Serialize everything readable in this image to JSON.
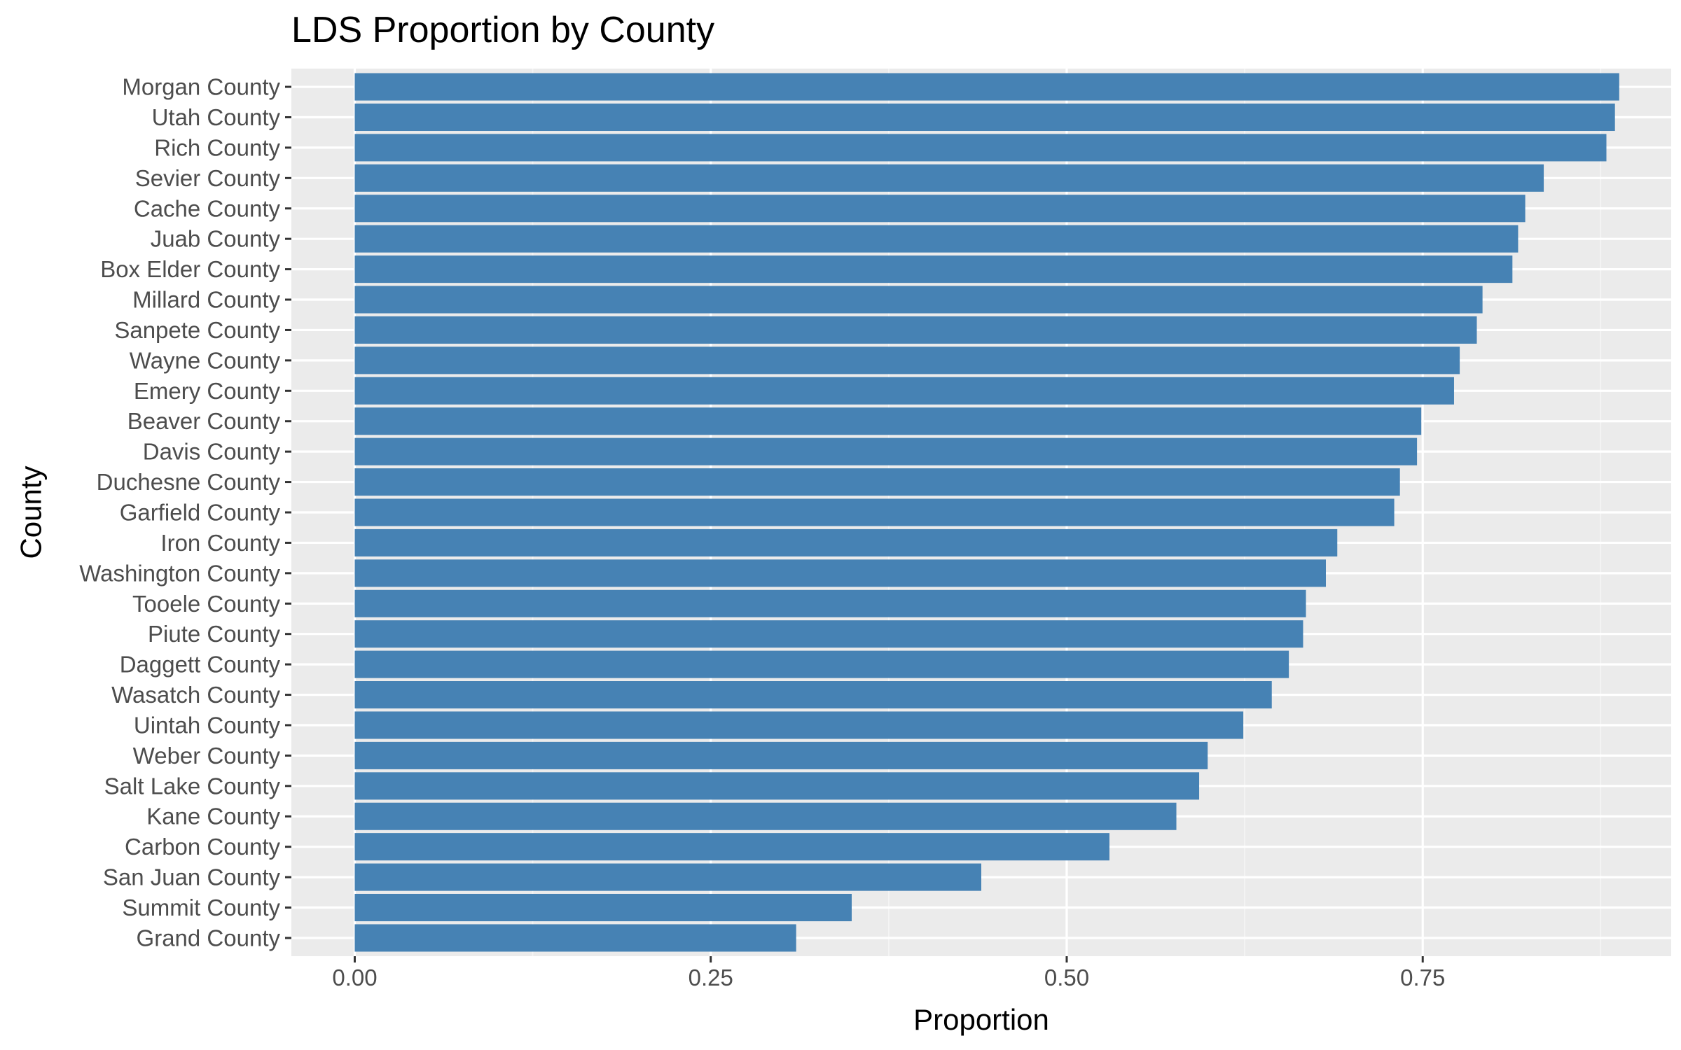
{
  "chart_data": {
    "type": "bar",
    "orientation": "horizontal",
    "title": "LDS Proportion by County",
    "xlabel": "Proportion",
    "ylabel": "County",
    "xlim": [
      -0.0445,
      0.9245
    ],
    "x_ticks": [
      0,
      0.25,
      0.5,
      0.75
    ],
    "x_tick_labels": [
      "0.00",
      "0.25",
      "0.50",
      "0.75"
    ],
    "grid": true,
    "legend": "none",
    "categories": [
      "Morgan County",
      "Utah County",
      "Rich County",
      "Sevier County",
      "Cache County",
      "Juab County",
      "Box Elder County",
      "Millard County",
      "Sanpete County",
      "Wayne County",
      "Emery County",
      "Beaver County",
      "Davis County",
      "Duchesne County",
      "Garfield County",
      "Iron County",
      "Washington County",
      "Tooele County",
      "Piute County",
      "Daggett County",
      "Wasatch County",
      "Uintah County",
      "Weber County",
      "Salt Lake County",
      "Kane County",
      "Carbon County",
      "San Juan County",
      "Summit County",
      "Grand County"
    ],
    "values": [
      0.888,
      0.885,
      0.879,
      0.835,
      0.822,
      0.817,
      0.813,
      0.792,
      0.788,
      0.776,
      0.772,
      0.749,
      0.746,
      0.734,
      0.73,
      0.69,
      0.682,
      0.668,
      0.666,
      0.656,
      0.644,
      0.624,
      0.599,
      0.593,
      0.577,
      0.53,
      0.44,
      0.349,
      0.31
    ],
    "colors": {
      "bar": "#4682b4",
      "panel": "#ebebeb",
      "grid_major": "#ffffff",
      "grid_minor": "#f5f5f5",
      "tick_text": "#4d4d4d",
      "tick_mark": "#333333",
      "title_text": "#000000"
    }
  }
}
